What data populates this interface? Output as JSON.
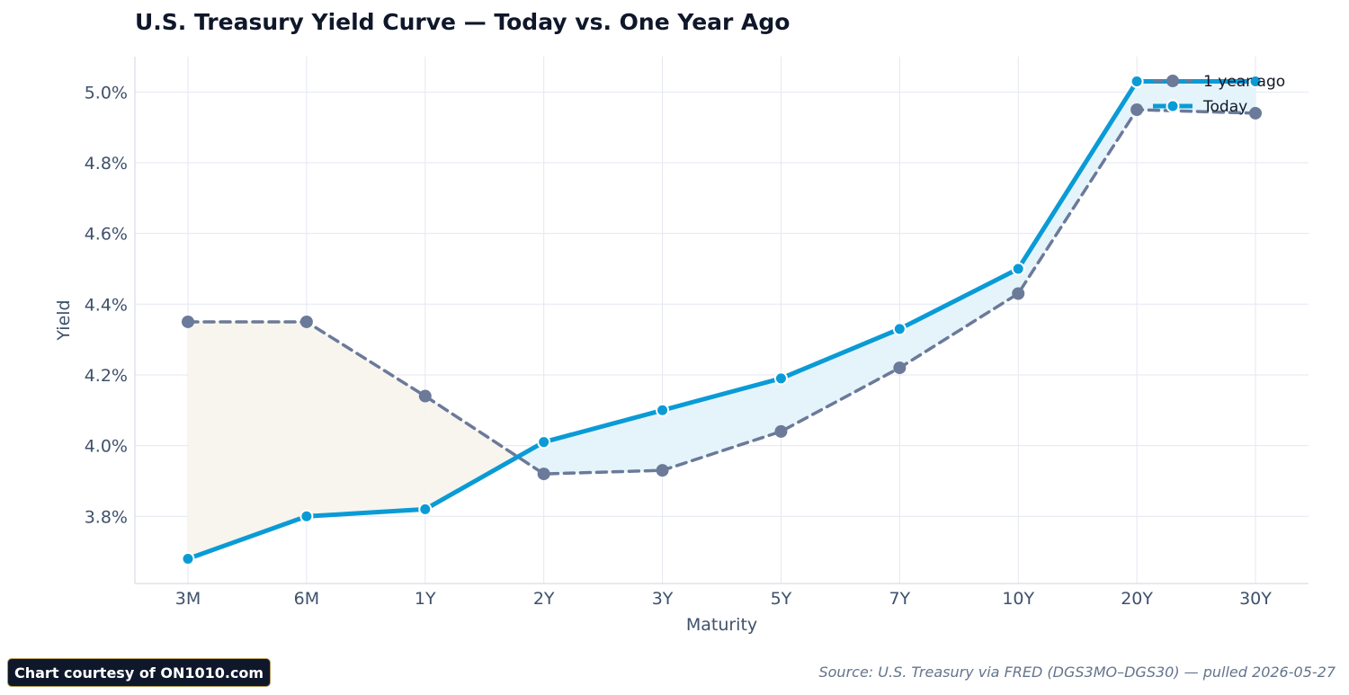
{
  "chart_data": {
    "type": "line",
    "title": "U.S. Treasury Yield Curve — Today vs. One Year Ago",
    "xlabel": "Maturity",
    "ylabel": "Yield",
    "categories": [
      "3M",
      "6M",
      "1Y",
      "2Y",
      "3Y",
      "5Y",
      "7Y",
      "10Y",
      "20Y",
      "30Y"
    ],
    "y_ticks": [
      "3.8%",
      "4.0%",
      "4.2%",
      "4.4%",
      "4.6%",
      "4.8%",
      "5.0%"
    ],
    "y_tick_values": [
      3.8,
      4.0,
      4.2,
      4.4,
      4.6,
      4.8,
      5.0
    ],
    "ylim": [
      3.61,
      5.1
    ],
    "grid": true,
    "legend_position": "top-right",
    "series": [
      {
        "name": "1 year ago",
        "values": [
          4.35,
          4.35,
          4.14,
          3.92,
          3.93,
          4.04,
          4.22,
          4.43,
          4.95,
          4.94
        ],
        "color": "#6b7a99",
        "style": "dashed"
      },
      {
        "name": "Today",
        "values": [
          3.68,
          3.8,
          3.82,
          4.01,
          4.1,
          4.19,
          4.33,
          4.5,
          5.03,
          5.03
        ],
        "color": "#0a9bd6",
        "style": "solid"
      }
    ],
    "fill_colors": {
      "today_above": "#e5f4fb",
      "today_below": "#f7f5ee"
    }
  },
  "footer": {
    "badge": "Chart courtesy of ON1010.com",
    "source": "Source: U.S. Treasury via FRED (DGS3MO–DGS30) — pulled 2026-05-27"
  }
}
